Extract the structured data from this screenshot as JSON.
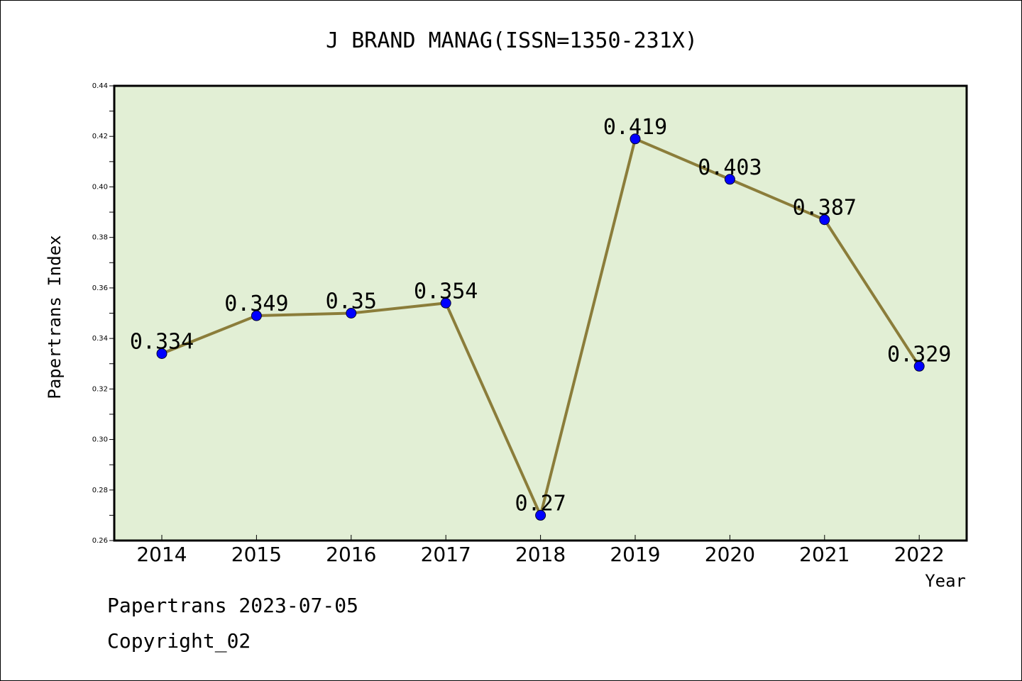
{
  "chart_data": {
    "type": "line",
    "title": "J BRAND MANAG(ISSN=1350-231X)",
    "xlabel": "Year",
    "ylabel": "Papertrans Index",
    "categories": [
      "2014",
      "2015",
      "2016",
      "2017",
      "2018",
      "2019",
      "2020",
      "2021",
      "2022"
    ],
    "series": [
      {
        "values": [
          0.334,
          0.349,
          0.35,
          0.354,
          0.27,
          0.419,
          0.403,
          0.387,
          0.329
        ],
        "labels": [
          "0.334",
          "0.349",
          "0.35",
          "0.354",
          "0.27",
          "0.419",
          "0.403",
          "0.387",
          "0.329"
        ],
        "line_color": "#8b7d3a",
        "marker_color": "#0000ff"
      }
    ],
    "ylim": [
      0.26,
      0.44
    ],
    "yticks": [
      "0.26",
      "0.28",
      "0.30",
      "0.32",
      "0.34",
      "0.36",
      "0.38",
      "0.40",
      "0.42",
      "0.44"
    ],
    "plot_background": "#e2efd5",
    "grid": false,
    "legend": "none"
  },
  "footer": {
    "line1": "Papertrans 2023-07-05",
    "line2": "Copyright_02"
  }
}
